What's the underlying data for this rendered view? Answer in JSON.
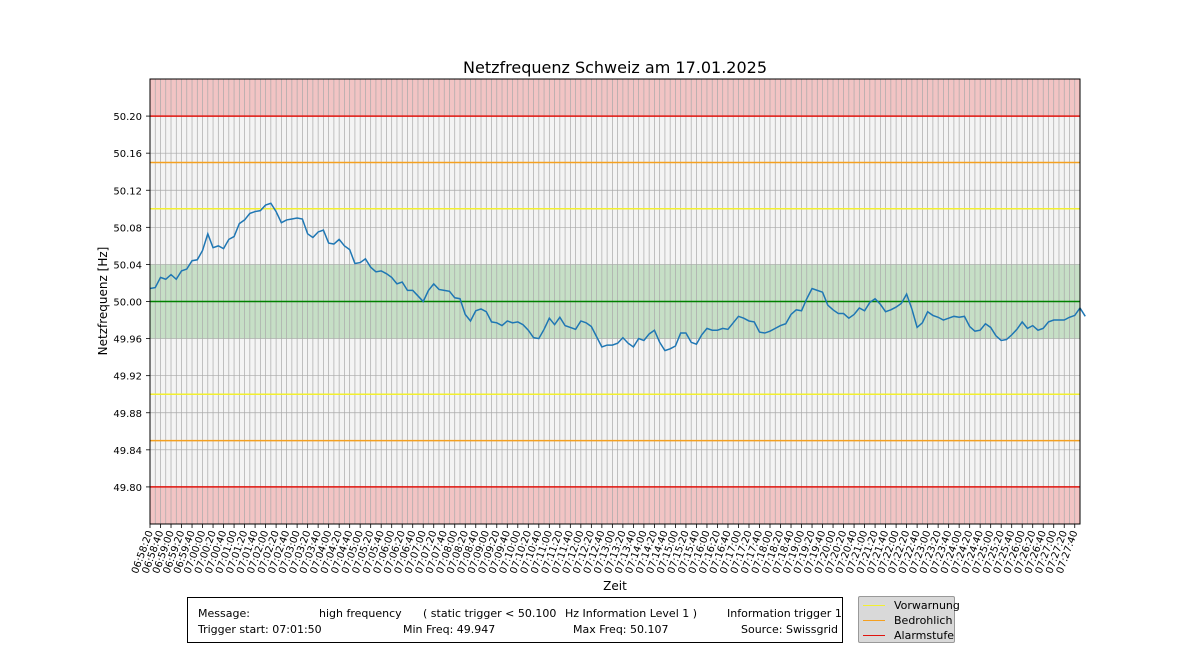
{
  "chart_data": {
    "type": "line",
    "title": "Netzfrequenz Schweiz am 17.01.2025",
    "xlabel": "Zeit",
    "ylabel": "Netzfrequenz [Hz]",
    "ylim": [
      49.76,
      50.24
    ],
    "y_ticks": [
      "49.80",
      "49.84",
      "49.88",
      "49.92",
      "49.96",
      "50.00",
      "50.04",
      "50.08",
      "50.12",
      "50.16",
      "50.20"
    ],
    "x_start": "06:58:20",
    "x_end": "07:27:50",
    "x_step_seconds": 10,
    "x_label_step_seconds": 20,
    "grid": true,
    "bands": [
      {
        "from": 49.76,
        "to": 49.8,
        "color": "#f2c4c4"
      },
      {
        "from": 49.96,
        "to": 50.04,
        "color": "#c6dfc6"
      },
      {
        "from": 50.2,
        "to": 50.24,
        "color": "#f2c4c4"
      }
    ],
    "hlines": [
      {
        "y": 50.2,
        "color": "#e0140e"
      },
      {
        "y": 49.8,
        "color": "#e0140e"
      },
      {
        "y": 50.15,
        "color": "#f4a020"
      },
      {
        "y": 49.85,
        "color": "#f4a020"
      },
      {
        "y": 50.1,
        "color": "#f2f030"
      },
      {
        "y": 49.9,
        "color": "#f2f030"
      },
      {
        "y": 50.0,
        "color": "#008000"
      }
    ],
    "series": [
      {
        "color": "#1f77b4",
        "values": [
          50.014,
          50.015,
          50.026,
          50.024,
          50.029,
          50.024,
          50.033,
          50.035,
          50.044,
          50.045,
          50.055,
          50.073,
          50.058,
          50.06,
          50.057,
          50.067,
          50.07,
          50.084,
          50.088,
          50.095,
          50.097,
          50.098,
          50.104,
          50.106,
          50.097,
          50.085,
          50.088,
          50.089,
          50.09,
          50.089,
          50.073,
          50.069,
          50.075,
          50.077,
          50.063,
          50.062,
          50.067,
          50.06,
          50.056,
          50.041,
          50.042,
          50.046,
          50.037,
          50.032,
          50.033,
          50.03,
          50.026,
          50.019,
          50.021,
          50.012,
          50.012,
          50.006,
          50.0,
          50.012,
          50.019,
          50.013,
          50.012,
          50.011,
          50.004,
          50.003,
          49.986,
          49.979,
          49.99,
          49.992,
          49.989,
          49.978,
          49.977,
          49.974,
          49.979,
          49.977,
          49.978,
          49.975,
          49.969,
          49.961,
          49.96,
          49.97,
          49.982,
          49.975,
          49.983,
          49.974,
          49.972,
          49.97,
          49.979,
          49.977,
          49.973,
          49.962,
          49.951,
          49.953,
          49.953,
          49.955,
          49.961,
          49.955,
          49.951,
          49.96,
          49.958,
          49.965,
          49.969,
          49.956,
          49.947,
          49.949,
          49.952,
          49.966,
          49.966,
          49.956,
          49.954,
          49.964,
          49.971,
          49.969,
          49.969,
          49.971,
          49.97,
          49.977,
          49.984,
          49.982,
          49.979,
          49.978,
          49.967,
          49.966,
          49.968,
          49.971,
          49.974,
          49.976,
          49.986,
          49.991,
          49.99,
          50.003,
          50.014,
          50.012,
          50.01,
          49.996,
          49.991,
          49.987,
          49.987,
          49.982,
          49.986,
          49.993,
          49.99,
          49.999,
          50.003,
          49.997,
          49.989,
          49.991,
          49.994,
          49.998,
          50.008,
          49.992,
          49.972,
          49.977,
          49.989,
          49.985,
          49.983,
          49.98,
          49.982,
          49.984,
          49.983,
          49.984,
          49.973,
          49.968,
          49.969,
          49.976,
          49.972,
          49.963,
          49.958,
          49.959,
          49.964,
          49.97,
          49.978,
          49.971,
          49.974,
          49.969,
          49.971,
          49.978,
          49.98,
          49.98,
          49.98,
          49.983,
          49.985,
          49.993,
          49.984
        ]
      }
    ]
  },
  "info": {
    "message_label": "Message:",
    "message_value": "high frequency",
    "trigger_desc": "( static trigger < 50.100",
    "level": "Hz Information Level 1 )",
    "trigger_name": "Information trigger 1",
    "trigger_start": "Trigger start: 07:01:50",
    "min_freq": "Min Freq: 49.947",
    "max_freq": "Max Freq: 50.107",
    "source": "Source: Swissgrid"
  },
  "legend": [
    {
      "label": "Vorwarnung",
      "color": "#f2f030"
    },
    {
      "label": "Bedrohlich",
      "color": "#f4a020"
    },
    {
      "label": "Alarmstufe",
      "color": "#e0140e"
    }
  ]
}
